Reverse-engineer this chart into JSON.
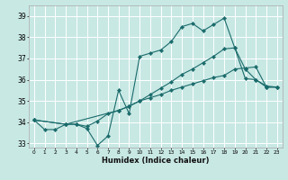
{
  "xlabel": "Humidex (Indice chaleur)",
  "xlim": [
    -0.5,
    23.5
  ],
  "ylim": [
    32.8,
    39.5
  ],
  "yticks": [
    33,
    34,
    35,
    36,
    37,
    38,
    39
  ],
  "xticks": [
    0,
    1,
    2,
    3,
    4,
    5,
    6,
    7,
    8,
    9,
    10,
    11,
    12,
    13,
    14,
    15,
    16,
    17,
    18,
    19,
    20,
    21,
    22,
    23
  ],
  "bg_color": "#c8e8e4",
  "grid_color": "#ffffff",
  "line_color": "#1a6b6b",
  "line1_x": [
    0,
    1,
    2,
    3,
    4,
    5,
    6,
    7,
    8,
    9,
    10,
    11,
    12,
    13,
    14,
    15,
    16,
    17,
    18,
    19,
    20,
    21,
    22,
    23
  ],
  "line1_y": [
    34.1,
    33.65,
    33.65,
    33.9,
    33.9,
    33.7,
    32.9,
    33.35,
    35.5,
    34.4,
    37.1,
    37.25,
    37.4,
    37.8,
    38.5,
    38.65,
    38.3,
    38.6,
    38.9,
    37.5,
    36.05,
    36.0,
    35.7,
    35.65
  ],
  "line2_x": [
    0,
    3,
    4,
    5,
    6,
    7,
    8,
    9,
    10,
    11,
    12,
    13,
    14,
    15,
    16,
    17,
    18,
    19,
    20,
    21,
    22,
    23
  ],
  "line2_y": [
    34.1,
    33.9,
    33.9,
    33.8,
    34.05,
    34.4,
    34.55,
    34.75,
    35.0,
    35.15,
    35.3,
    35.5,
    35.65,
    35.8,
    35.95,
    36.1,
    36.2,
    36.5,
    36.55,
    36.6,
    35.65,
    35.65
  ],
  "line3_x": [
    0,
    3,
    8,
    9,
    10,
    11,
    12,
    13,
    14,
    15,
    16,
    17,
    18,
    19,
    20,
    21,
    22,
    23
  ],
  "line3_y": [
    34.1,
    33.9,
    34.55,
    34.75,
    35.0,
    35.3,
    35.6,
    35.9,
    36.25,
    36.5,
    36.8,
    37.1,
    37.45,
    37.5,
    36.5,
    36.0,
    35.65,
    35.65
  ]
}
